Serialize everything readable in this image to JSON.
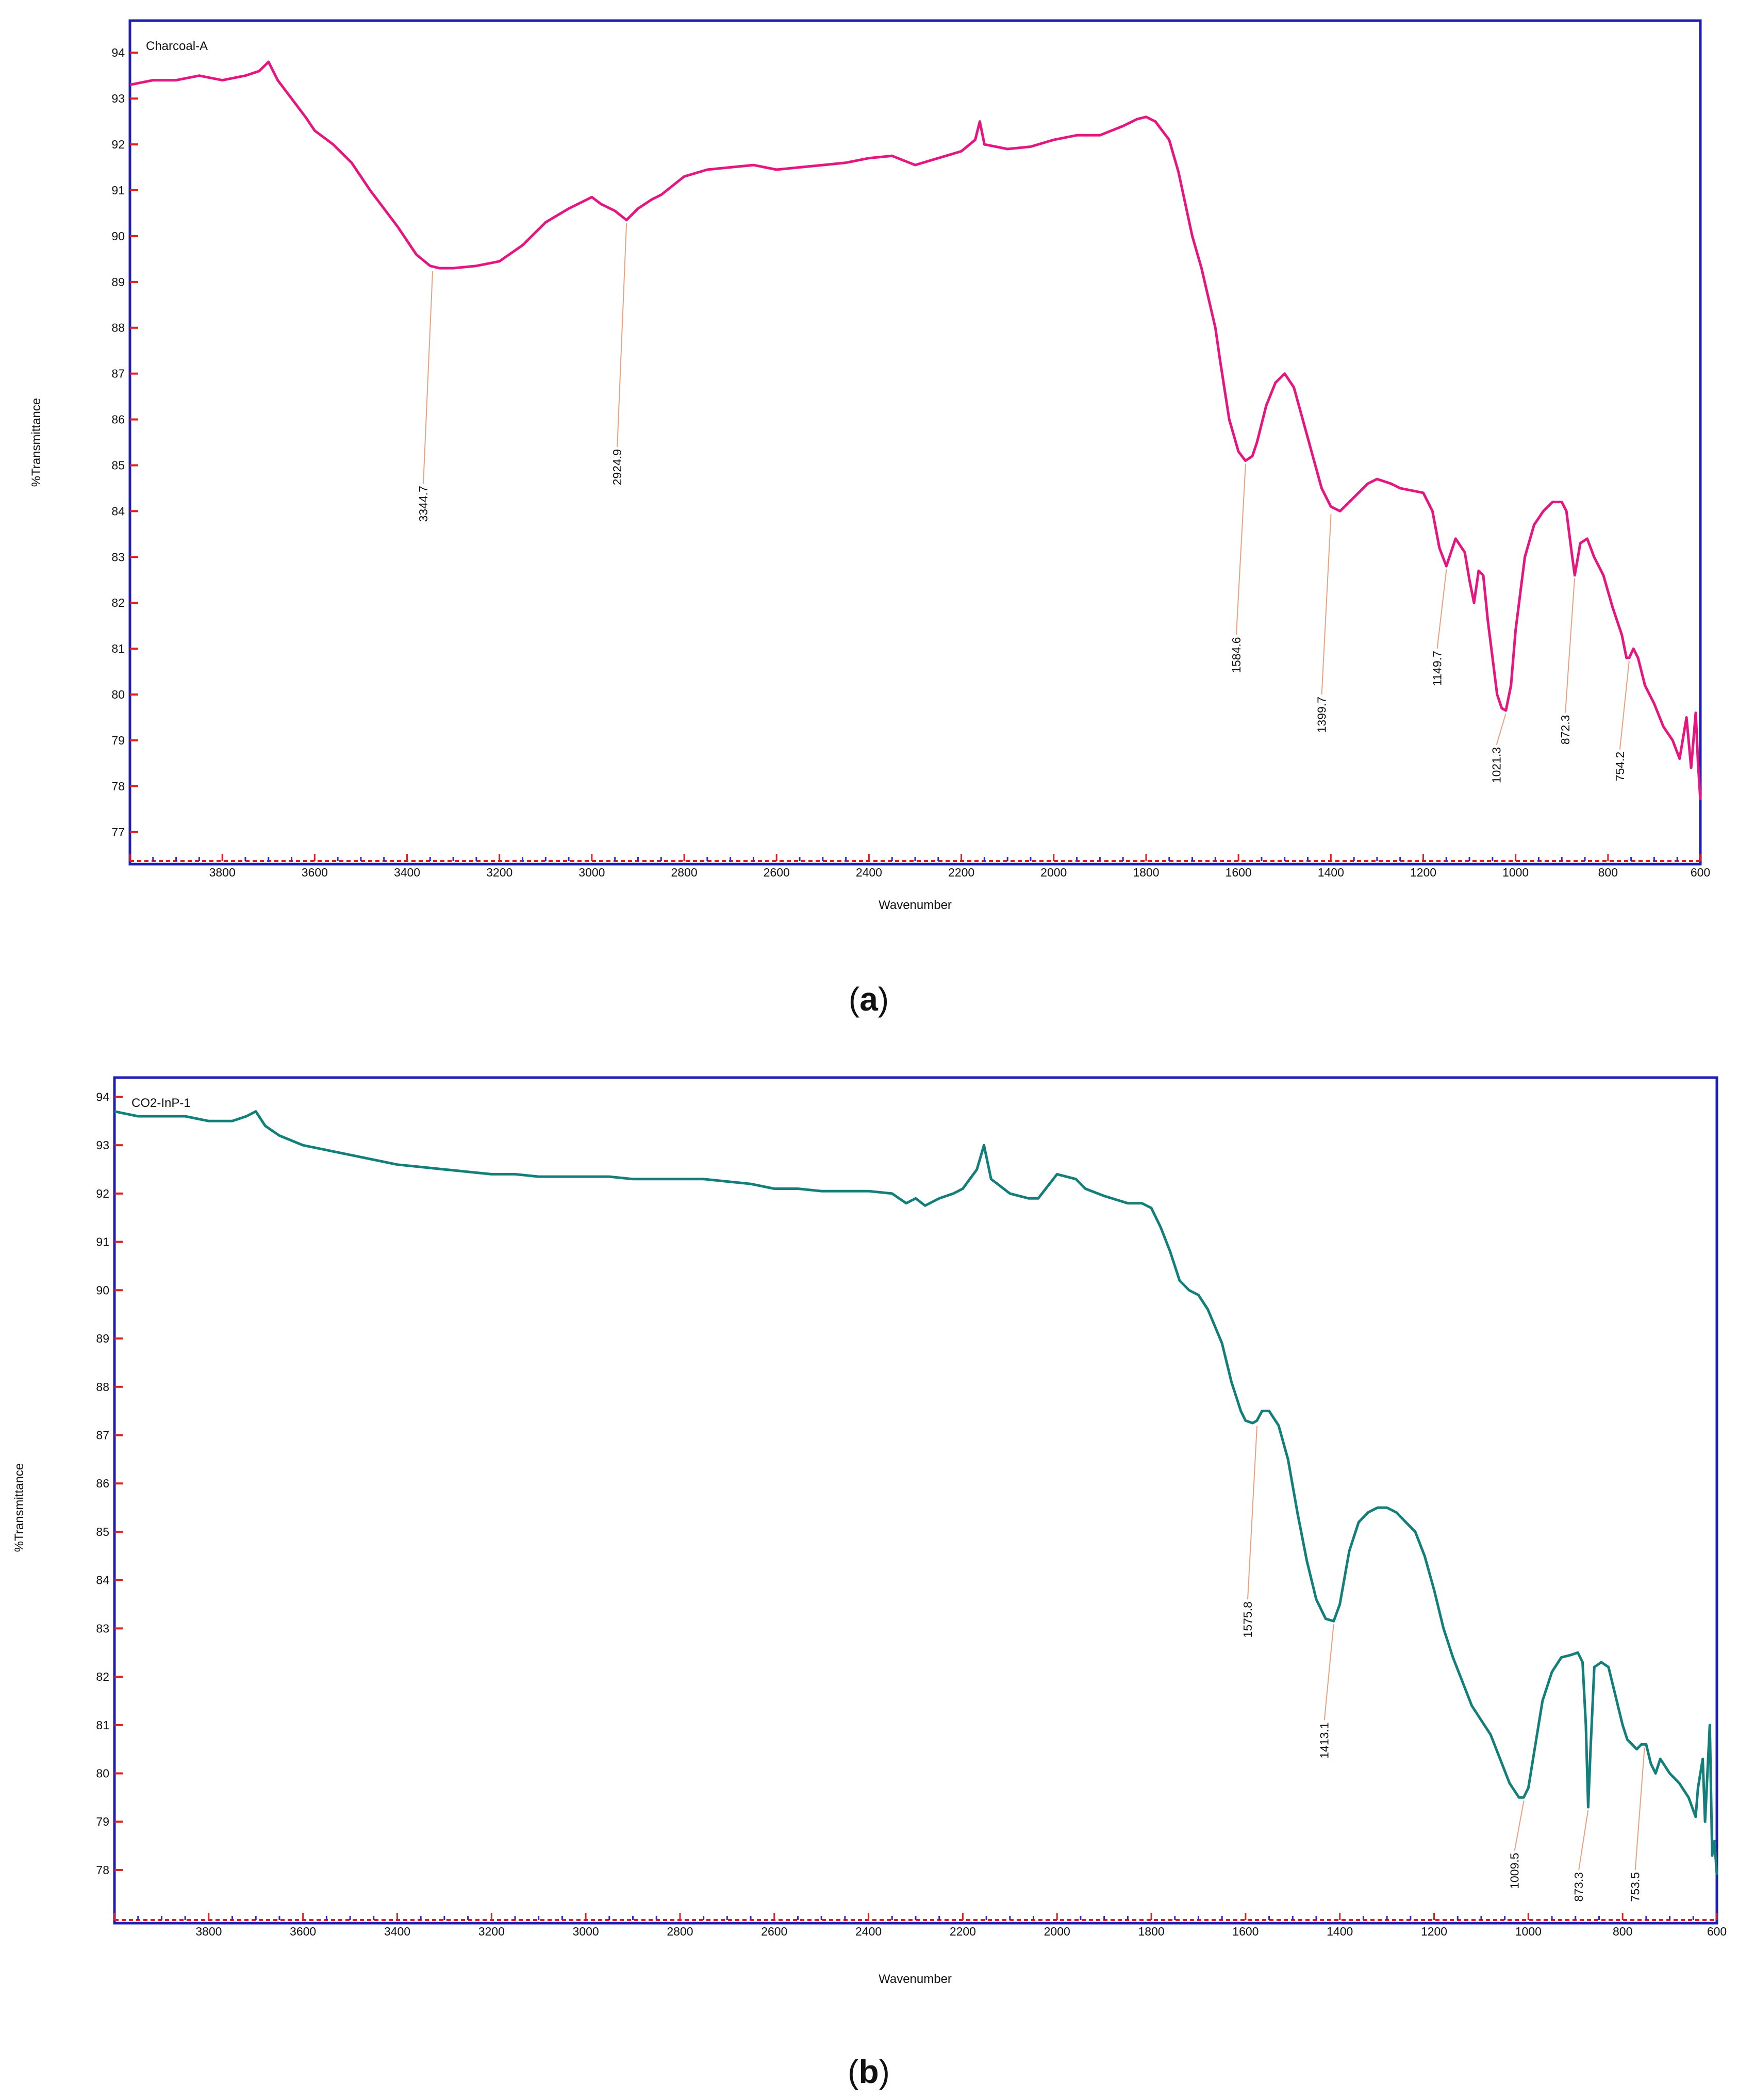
{
  "panels": [
    {
      "caption_letter": "a",
      "chart_data": {
        "type": "line",
        "title": "Charcoal-A",
        "xlabel": "Wavenumber",
        "ylabel": "%Transmittance",
        "xlim": [
          4000,
          600
        ],
        "ylim": [
          76.3,
          94.7
        ],
        "x_reversed": true,
        "x_ticks": [
          3800,
          3600,
          3400,
          3200,
          3000,
          2800,
          2600,
          2400,
          2200,
          2000,
          1800,
          1600,
          1400,
          1200,
          1000,
          800,
          600
        ],
        "y_ticks": [
          77,
          78,
          79,
          80,
          81,
          82,
          83,
          84,
          85,
          86,
          87,
          88,
          89,
          90,
          91,
          92,
          93,
          94
        ],
        "grid": false,
        "line_color": "#e5167f",
        "series": [
          {
            "x": [
              4000,
              3950,
              3900,
              3850,
              3800,
              3750,
              3720,
              3700,
              3680,
              3650,
              3620,
              3600,
              3560,
              3520,
              3500,
              3480,
              3450,
              3420,
              3400,
              3380,
              3350,
              3330,
              3300,
              3250,
              3200,
              3150,
              3100,
              3050,
              3000,
              2980,
              2950,
              2925,
              2900,
              2870,
              2850,
              2800,
              2750,
              2700,
              2650,
              2600,
              2550,
              2500,
              2450,
              2400,
              2350,
              2300,
              2250,
              2200,
              2170,
              2160,
              2150,
              2100,
              2050,
              2000,
              1950,
              1900,
              1850,
              1820,
              1800,
              1780,
              1750,
              1730,
              1700,
              1680,
              1650,
              1640,
              1620,
              1600,
              1585,
              1570,
              1560,
              1540,
              1520,
              1500,
              1480,
              1450,
              1420,
              1400,
              1380,
              1350,
              1320,
              1300,
              1270,
              1250,
              1200,
              1180,
              1165,
              1150,
              1130,
              1110,
              1100,
              1090,
              1080,
              1070,
              1060,
              1050,
              1040,
              1030,
              1021,
              1010,
              1000,
              980,
              960,
              940,
              920,
              900,
              890,
              880,
              872,
              865,
              860,
              845,
              830,
              810,
              790,
              770,
              760,
              754,
              745,
              735,
              720,
              700,
              680,
              660,
              645,
              640,
              630,
              620,
              610,
              605,
              600
            ],
            "y": [
              93.3,
              93.4,
              93.4,
              93.5,
              93.4,
              93.5,
              93.6,
              93.8,
              93.4,
              93.0,
              92.6,
              92.3,
              92.0,
              91.6,
              91.3,
              91.0,
              90.6,
              90.2,
              89.9,
              89.6,
              89.35,
              89.3,
              89.3,
              89.35,
              89.45,
              89.8,
              90.3,
              90.6,
              90.85,
              90.7,
              90.55,
              90.35,
              90.6,
              90.8,
              90.9,
              91.3,
              91.45,
              91.5,
              91.55,
              91.45,
              91.5,
              91.55,
              91.6,
              91.7,
              91.75,
              91.55,
              91.7,
              91.85,
              92.1,
              92.5,
              92.0,
              91.9,
              91.95,
              92.1,
              92.2,
              92.2,
              92.4,
              92.55,
              92.6,
              92.5,
              92.1,
              91.4,
              90.0,
              89.3,
              88.0,
              87.3,
              86.0,
              85.3,
              85.1,
              85.2,
              85.5,
              86.3,
              86.8,
              87.0,
              86.7,
              85.6,
              84.5,
              84.1,
              84.0,
              84.3,
              84.6,
              84.7,
              84.6,
              84.5,
              84.4,
              84.0,
              83.2,
              82.8,
              83.4,
              83.1,
              82.5,
              82.0,
              82.7,
              82.6,
              81.6,
              80.8,
              80.0,
              79.7,
              79.65,
              80.2,
              81.4,
              83.0,
              83.7,
              84.0,
              84.2,
              84.2,
              84.0,
              83.2,
              82.6,
              83.0,
              83.3,
              83.4,
              83.0,
              82.6,
              81.9,
              81.3,
              80.8,
              80.8,
              81.0,
              80.8,
              80.2,
              79.8,
              79.3,
              79.0,
              78.6,
              78.9,
              79.5,
              78.4,
              79.6,
              78.5,
              77.7
            ]
          }
        ],
        "annotations": [
          "3344.7",
          "2924.9",
          "1584.6",
          "1399.7",
          "1149.7",
          "1021.3",
          "872.3",
          "754.2"
        ]
      }
    },
    {
      "caption_letter": "b",
      "chart_data": {
        "type": "line",
        "title": "CO2-InP-1",
        "xlabel": "Wavenumber",
        "ylabel": "%Transmittance",
        "xlim": [
          4000,
          600
        ],
        "ylim": [
          76.9,
          94.4
        ],
        "x_reversed": true,
        "x_ticks": [
          3800,
          3600,
          3400,
          3200,
          3000,
          2800,
          2600,
          2400,
          2200,
          2000,
          1800,
          1600,
          1400,
          1200,
          1000,
          800,
          600
        ],
        "y_ticks": [
          78,
          79,
          80,
          81,
          82,
          83,
          84,
          85,
          86,
          87,
          88,
          89,
          90,
          91,
          92,
          93,
          94
        ],
        "grid": false,
        "line_color": "#137f7a",
        "series": [
          {
            "x": [
              4000,
              3950,
              3900,
              3850,
              3800,
              3750,
              3720,
              3700,
              3680,
              3650,
              3600,
              3550,
              3500,
              3450,
              3400,
              3350,
              3300,
              3250,
              3200,
              3150,
              3100,
              3050,
              3000,
              2950,
              2900,
              2850,
              2800,
              2750,
              2700,
              2650,
              2600,
              2550,
              2500,
              2450,
              2400,
              2350,
              2320,
              2300,
              2280,
              2250,
              2220,
              2200,
              2170,
              2155,
              2140,
              2100,
              2060,
              2040,
              2000,
              1960,
              1940,
              1900,
              1850,
              1820,
              1800,
              1780,
              1760,
              1740,
              1720,
              1700,
              1680,
              1650,
              1630,
              1610,
              1600,
              1585,
              1576,
              1565,
              1550,
              1530,
              1510,
              1490,
              1470,
              1450,
              1430,
              1413,
              1400,
              1380,
              1360,
              1340,
              1320,
              1300,
              1280,
              1260,
              1240,
              1220,
              1200,
              1180,
              1160,
              1140,
              1120,
              1100,
              1080,
              1060,
              1040,
              1020,
              1010,
              1000,
              990,
              970,
              950,
              930,
              910,
              895,
              885,
              878,
              873,
              868,
              860,
              845,
              830,
              815,
              800,
              790,
              780,
              770,
              760,
              750,
              740,
              730,
              720,
              700,
              680,
              660,
              645,
              640,
              630,
              625,
              615,
              610,
              605,
              600
            ],
            "y": [
              93.7,
              93.6,
              93.6,
              93.6,
              93.5,
              93.5,
              93.6,
              93.7,
              93.4,
              93.2,
              93.0,
              92.9,
              92.8,
              92.7,
              92.6,
              92.55,
              92.5,
              92.45,
              92.4,
              92.4,
              92.35,
              92.35,
              92.35,
              92.35,
              92.3,
              92.3,
              92.3,
              92.3,
              92.25,
              92.2,
              92.1,
              92.1,
              92.05,
              92.05,
              92.05,
              92.0,
              91.8,
              91.9,
              91.75,
              91.9,
              92.0,
              92.1,
              92.5,
              93.0,
              92.3,
              92.0,
              91.9,
              91.9,
              92.4,
              92.3,
              92.1,
              91.95,
              91.8,
              91.8,
              91.7,
              91.3,
              90.8,
              90.2,
              90.0,
              89.9,
              89.6,
              88.9,
              88.1,
              87.5,
              87.3,
              87.25,
              87.3,
              87.5,
              87.5,
              87.2,
              86.5,
              85.4,
              84.4,
              83.6,
              83.2,
              83.15,
              83.5,
              84.6,
              85.2,
              85.4,
              85.5,
              85.5,
              85.4,
              85.2,
              85.0,
              84.5,
              83.8,
              83.0,
              82.4,
              81.9,
              81.4,
              81.1,
              80.8,
              80.3,
              79.8,
              79.5,
              79.5,
              79.7,
              80.3,
              81.5,
              82.1,
              82.4,
              82.45,
              82.5,
              82.3,
              81.0,
              79.3,
              80.5,
              82.2,
              82.3,
              82.2,
              81.6,
              81.0,
              80.7,
              80.6,
              80.5,
              80.6,
              80.6,
              80.2,
              80.0,
              80.3,
              80.0,
              79.8,
              79.5,
              79.1,
              79.7,
              80.3,
              79.0,
              81.0,
              78.3,
              78.6,
              77.9
            ]
          }
        ],
        "annotations": [
          "1575.8",
          "1413.1",
          "1009.5",
          "873.3",
          "753.5"
        ]
      }
    }
  ]
}
